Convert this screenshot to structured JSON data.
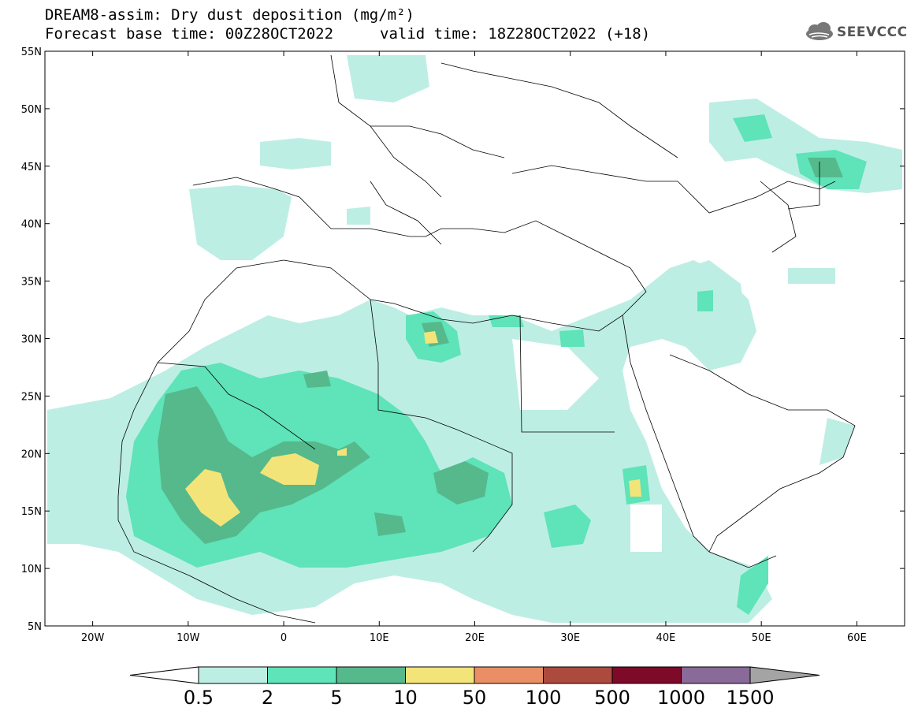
{
  "title": {
    "line1": "DREAM8-assim: Dry dust deposition (mg/m²)",
    "line2": "Forecast base time: 00Z28OCT2022",
    "valid": "valid time: 18Z28OCT2022 (+18)"
  },
  "logo": {
    "text": "SEEVCCC",
    "icon": "cloud-icon"
  },
  "map": {
    "lon_ticks": [
      {
        "lon": -20,
        "label": "20W"
      },
      {
        "lon": -10,
        "label": "10W"
      },
      {
        "lon": 0,
        "label": "0"
      },
      {
        "lon": 10,
        "label": "10E"
      },
      {
        "lon": 20,
        "label": "20E"
      },
      {
        "lon": 30,
        "label": "30E"
      },
      {
        "lon": 40,
        "label": "40E"
      },
      {
        "lon": 50,
        "label": "50E"
      },
      {
        "lon": 60,
        "label": "60E"
      }
    ],
    "lat_ticks": [
      {
        "lat": 5,
        "label": "5N"
      },
      {
        "lat": 10,
        "label": "10N"
      },
      {
        "lat": 15,
        "label": "15N"
      },
      {
        "lat": 20,
        "label": "20N"
      },
      {
        "lat": 25,
        "label": "25N"
      },
      {
        "lat": 30,
        "label": "30N"
      },
      {
        "lat": 35,
        "label": "35N"
      },
      {
        "lat": 40,
        "label": "40N"
      },
      {
        "lat": 45,
        "label": "45N"
      },
      {
        "lat": 50,
        "label": "50N"
      },
      {
        "lat": 55,
        "label": "55N"
      }
    ],
    "extent": {
      "lon_min": -25,
      "lon_max": 65,
      "lat_min": 5,
      "lat_max": 55
    }
  },
  "legend": {
    "labels": [
      "0.5",
      "2",
      "5",
      "10",
      "50",
      "100",
      "500",
      "1000",
      "1500"
    ],
    "colors": [
      "#bdeee4",
      "#5fe3b8",
      "#55b98c",
      "#f3e479",
      "#ea8e66",
      "#ab4a3d",
      "#7e0a2a",
      "#896a99"
    ],
    "under_color": "#ffffff",
    "over_color": "#a4a4a4"
  }
}
